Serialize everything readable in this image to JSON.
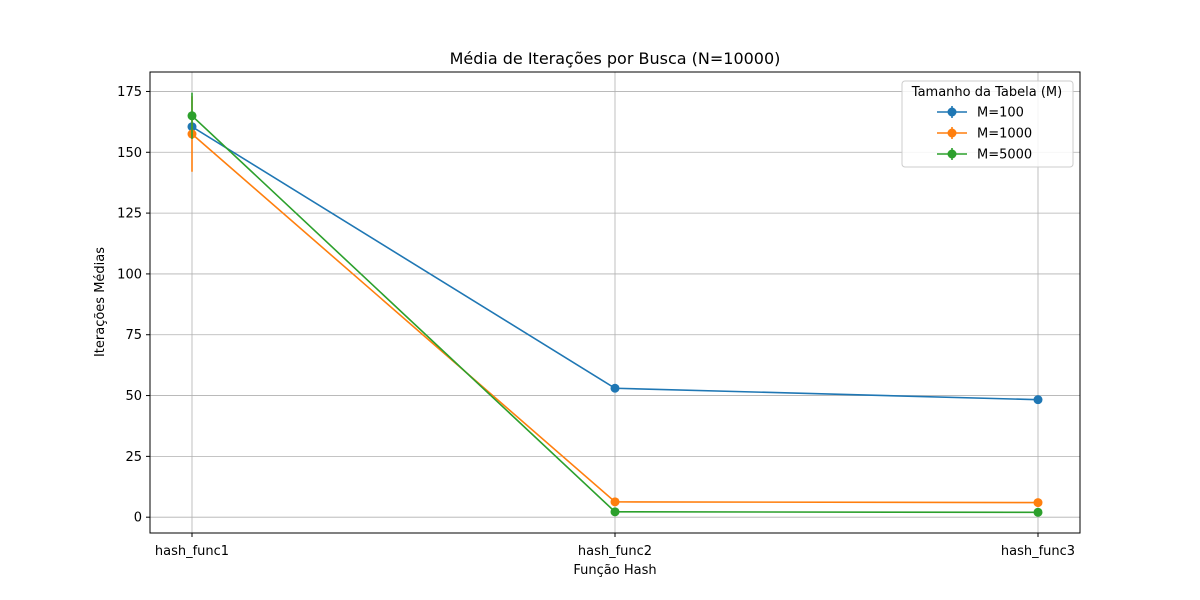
{
  "chart_data": {
    "type": "line",
    "title": "Média de Iterações por Busca (N=10000)",
    "xlabel": "Função Hash",
    "ylabel": "Iterações Médias",
    "categories": [
      "hash_func1",
      "hash_func2",
      "hash_func3"
    ],
    "ylim": [
      -6.5,
      183
    ],
    "yticks": [
      0,
      25,
      50,
      75,
      100,
      125,
      150,
      175
    ],
    "grid": true,
    "legend": {
      "title": "Tamanho da Tabela (M)",
      "placement": "top-right"
    },
    "series": [
      {
        "name": "M=100",
        "color": "#1f77b4",
        "values": [
          160.5,
          53.0,
          48.3
        ],
        "errors": [
          0.5,
          0.4,
          0.4
        ]
      },
      {
        "name": "M=1000",
        "color": "#ff7f0e",
        "values": [
          157.5,
          6.3,
          6.0
        ],
        "errors": [
          15.5,
          0.3,
          0.3
        ]
      },
      {
        "name": "M=5000",
        "color": "#2ca02c",
        "values": [
          165.0,
          2.2,
          2.0
        ],
        "errors": [
          9.5,
          0.2,
          0.2
        ]
      }
    ]
  }
}
